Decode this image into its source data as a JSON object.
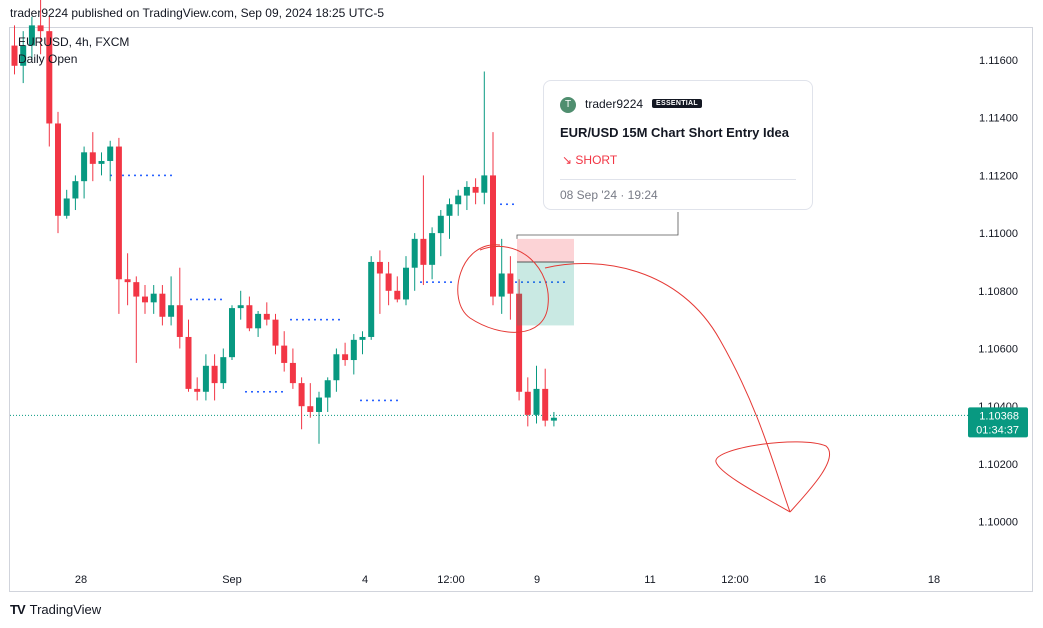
{
  "header": {
    "published": "trader9224 published on TradingView.com, Sep 09, 2024 18:25 UTC-5"
  },
  "legend": {
    "symbol": "EURUSD, 4h, FXCM",
    "indicator": "Daily Open"
  },
  "brand": {
    "name": "TradingView",
    "logo": "TV"
  },
  "idea_card": {
    "avatar_letter": "T",
    "author": "trader9224",
    "badge": "ESSENTIAL",
    "title": "EUR/USD 15M Chart Short Entry Idea",
    "direction": "SHORT",
    "direction_icon": "arrow-down-right-icon",
    "date": "08 Sep '24 · 19:24"
  },
  "chart_data": {
    "type": "candlestick",
    "symbol": "EURUSD",
    "timeframe": "4h",
    "y_ticks": [
      "1.11600",
      "1.11400",
      "1.11200",
      "1.11000",
      "1.10800",
      "1.10600",
      "1.10400",
      "1.10200",
      "1.10000"
    ],
    "x_ticks": [
      "28",
      "Sep",
      "4",
      "12:00",
      "9",
      "11",
      "12:00",
      "16",
      "18"
    ],
    "last_price": "1.10368",
    "countdown": "01:34:37",
    "colors": {
      "up": "#089981",
      "down": "#f23645",
      "annotation": "#e53935"
    },
    "candles": [
      [
        1.1165,
        1.1172,
        1.1155,
        1.1158
      ],
      [
        1.1158,
        1.117,
        1.1152,
        1.1165
      ],
      [
        1.1165,
        1.1175,
        1.116,
        1.1172
      ],
      [
        1.1172,
        1.1185,
        1.1162,
        1.117
      ],
      [
        1.117,
        1.1175,
        1.113,
        1.1138
      ],
      [
        1.1138,
        1.1142,
        1.11,
        1.1106
      ],
      [
        1.1106,
        1.1115,
        1.1105,
        1.1112
      ],
      [
        1.1112,
        1.112,
        1.1108,
        1.1118
      ],
      [
        1.1118,
        1.113,
        1.1112,
        1.1128
      ],
      [
        1.1128,
        1.1135,
        1.1118,
        1.1124
      ],
      [
        1.1124,
        1.1128,
        1.112,
        1.1125
      ],
      [
        1.1125,
        1.1132,
        1.1118,
        1.113
      ],
      [
        1.113,
        1.1133,
        1.1072,
        1.1084
      ],
      [
        1.1084,
        1.1093,
        1.1075,
        1.1083
      ],
      [
        1.1083,
        1.1085,
        1.1055,
        1.1078
      ],
      [
        1.1078,
        1.1082,
        1.1072,
        1.1076
      ],
      [
        1.1076,
        1.1082,
        1.1072,
        1.1079
      ],
      [
        1.1079,
        1.1082,
        1.1068,
        1.1071
      ],
      [
        1.1071,
        1.1085,
        1.1068,
        1.1075
      ],
      [
        1.1075,
        1.1088,
        1.106,
        1.1064
      ],
      [
        1.1064,
        1.107,
        1.1045,
        1.1046
      ],
      [
        1.1046,
        1.105,
        1.1042,
        1.1045
      ],
      [
        1.1045,
        1.1058,
        1.1042,
        1.1054
      ],
      [
        1.1054,
        1.1058,
        1.1042,
        1.1048
      ],
      [
        1.1048,
        1.106,
        1.1046,
        1.1057
      ],
      [
        1.1057,
        1.1075,
        1.1056,
        1.1074
      ],
      [
        1.1074,
        1.108,
        1.107,
        1.1075
      ],
      [
        1.1075,
        1.1078,
        1.1066,
        1.1067
      ],
      [
        1.1067,
        1.1073,
        1.1064,
        1.1072
      ],
      [
        1.1072,
        1.1076,
        1.1068,
        1.107
      ],
      [
        1.107,
        1.1072,
        1.1058,
        1.1061
      ],
      [
        1.1061,
        1.1066,
        1.1052,
        1.1055
      ],
      [
        1.1055,
        1.106,
        1.1046,
        1.1048
      ],
      [
        1.1048,
        1.105,
        1.1032,
        1.104
      ],
      [
        1.104,
        1.1048,
        1.1036,
        1.1038
      ],
      [
        1.1038,
        1.1045,
        1.1027,
        1.1043
      ],
      [
        1.1043,
        1.105,
        1.1038,
        1.1049
      ],
      [
        1.1049,
        1.106,
        1.1045,
        1.1058
      ],
      [
        1.1058,
        1.1062,
        1.1054,
        1.1056
      ],
      [
        1.1056,
        1.1065,
        1.1051,
        1.1063
      ],
      [
        1.1063,
        1.1066,
        1.1058,
        1.1064
      ],
      [
        1.1064,
        1.1092,
        1.1063,
        1.109
      ],
      [
        1.109,
        1.1094,
        1.1072,
        1.1086
      ],
      [
        1.1086,
        1.109,
        1.1075,
        1.108
      ],
      [
        1.108,
        1.1085,
        1.1076,
        1.1077
      ],
      [
        1.1077,
        1.1092,
        1.1075,
        1.1088
      ],
      [
        1.1088,
        1.11,
        1.108,
        1.1098
      ],
      [
        1.1098,
        1.112,
        1.1082,
        1.1089
      ],
      [
        1.1089,
        1.1102,
        1.1084,
        1.11
      ],
      [
        1.11,
        1.1108,
        1.1092,
        1.1106
      ],
      [
        1.1106,
        1.1112,
        1.1098,
        1.111
      ],
      [
        1.111,
        1.1115,
        1.1106,
        1.1113
      ],
      [
        1.1113,
        1.1118,
        1.1108,
        1.1116
      ],
      [
        1.1116,
        1.1119,
        1.111,
        1.1114
      ],
      [
        1.1114,
        1.1156,
        1.111,
        1.112
      ],
      [
        1.112,
        1.1135,
        1.1075,
        1.1078
      ],
      [
        1.1078,
        1.1098,
        1.1072,
        1.1086
      ],
      [
        1.1086,
        1.1092,
        1.107,
        1.1079
      ],
      [
        1.1079,
        1.1084,
        1.1042,
        1.1045
      ],
      [
        1.1045,
        1.105,
        1.1033,
        1.1037
      ],
      [
        1.1037,
        1.1054,
        1.1034,
        1.1046
      ],
      [
        1.1046,
        1.1053,
        1.1033,
        1.1035
      ],
      [
        1.1035,
        1.1038,
        1.1033,
        1.1036
      ]
    ],
    "annotations": {
      "circle_label": "highlight",
      "projection": "downward arrow",
      "short_position": "entry 1.1090, stop 1.1098, target 1.1068"
    }
  }
}
